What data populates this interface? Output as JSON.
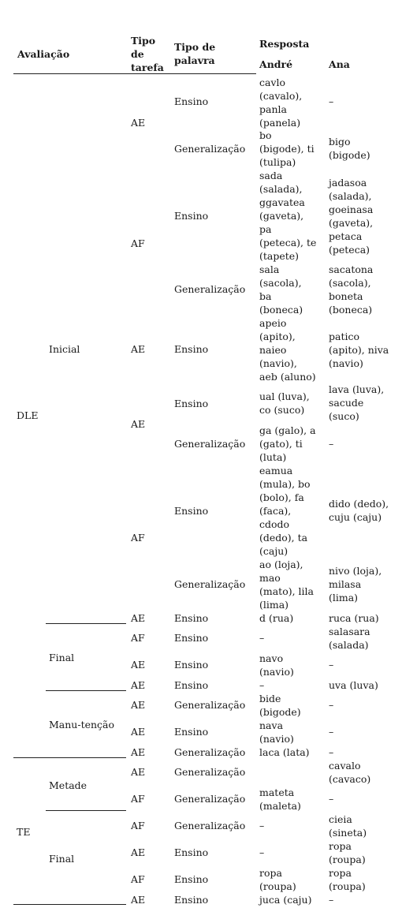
{
  "header": {
    "avaliacao": "Avaliação",
    "tipo_tarefa": [
      "Tipo",
      "de",
      "tarefa"
    ],
    "tipo_palavra": [
      "Tipo de",
      "palavra"
    ],
    "resposta": "Resposta",
    "andre": "André",
    "ana": "Ana"
  },
  "groups": {
    "dle": "DLE",
    "te": "TE",
    "inicial": "Inicial",
    "final_dle": "Final",
    "manutencao": "Manu-tenção",
    "metade": "Metade",
    "final_te": "Final"
  },
  "rows": [
    {
      "tarefa": "",
      "palavra": "Ensino",
      "andre": [
        "cavlo",
        "(cavalo),",
        "panla",
        "(panela)"
      ],
      "ana": [
        "–"
      ]
    },
    {
      "tarefa": "AE",
      "palavra": "",
      "andre": [],
      "ana": []
    },
    {
      "tarefa": "",
      "palavra": "Generalização",
      "andre": [
        "bo",
        "(bigode), ti",
        "(tulipa)"
      ],
      "ana": [
        "bigo",
        "(bigode)"
      ]
    },
    {
      "tarefa": "",
      "palavra": "Ensino",
      "andre": [
        "sada",
        "(salada),",
        "ggavatea",
        "(gaveta),",
        "pa",
        "(peteca), te",
        "(tapete)"
      ],
      "ana": [
        "jadasoa",
        "(salada),",
        "goeinasa",
        "(gaveta),",
        "petaca",
        "(peteca)"
      ]
    },
    {
      "tarefa": "AF",
      "palavra": "",
      "andre": [],
      "ana": []
    },
    {
      "tarefa": "",
      "palavra": "Generalização",
      "andre": [
        "sala",
        "(sacola),",
        "ba",
        "(boneca)"
      ],
      "ana": [
        "sacatona",
        "(sacola),",
        "boneta",
        "(boneca)"
      ]
    },
    {
      "tarefa": "AE",
      "palavra": "Ensino",
      "andre": [
        "apeio",
        "(apito),",
        "naieo",
        "(navio),",
        "aeb (aluno)"
      ],
      "ana": [
        "patico",
        "(apito), niva",
        "(navio)"
      ]
    },
    {
      "tarefa": "",
      "palavra": "Ensino",
      "andre": [
        "ual (luva),",
        "co (suco)"
      ],
      "ana": [
        "lava (luva),",
        "sacude",
        "(suco)"
      ]
    },
    {
      "tarefa": "AE",
      "palavra": "",
      "andre": [],
      "ana": []
    },
    {
      "tarefa": "",
      "palavra": "Generalização",
      "andre": [
        "ga (galo), a",
        "(gato), ti",
        "(luta)"
      ],
      "ana": [
        "–"
      ]
    },
    {
      "tarefa": "",
      "palavra": "Ensino",
      "andre": [
        "eamua",
        "(mula), bo",
        "(bolo), fa",
        "(faca),",
        "cdodo",
        "(dedo), ta",
        "(caju)"
      ],
      "ana": [
        "dido (dedo),",
        "cuju (caju)"
      ]
    },
    {
      "tarefa": "AF",
      "palavra": "",
      "andre": [],
      "ana": []
    },
    {
      "tarefa": "",
      "palavra": "Generalização",
      "andre": [
        "ao (loja),",
        "mao",
        "(mato), lila",
        "(lima)"
      ],
      "ana": [
        "nivo (loja),",
        "milasa",
        "(lima)"
      ]
    },
    {
      "tarefa": "AE",
      "palavra": "Ensino",
      "andre": [
        "d (rua)"
      ],
      "ana": [
        "ruca (rua)"
      ]
    },
    {
      "tarefa": "AF",
      "palavra": "Ensino",
      "andre": [
        "–"
      ],
      "ana": [
        "salasara",
        "(salada)"
      ]
    },
    {
      "tarefa": "AE",
      "palavra": "Ensino",
      "andre": [
        "navo",
        "(navio)"
      ],
      "ana": [
        "–"
      ]
    },
    {
      "tarefa": "AE",
      "palavra": "Ensino",
      "andre": [
        "–"
      ],
      "ana": [
        "uva (luva)"
      ]
    },
    {
      "tarefa": "AE",
      "palavra": "Generalização",
      "andre": [
        "bide",
        "(bigode)"
      ],
      "ana": [
        "–"
      ]
    },
    {
      "tarefa": "AE",
      "palavra": "Ensino",
      "andre": [
        "nava",
        "(navio)"
      ],
      "ana": [
        "–"
      ]
    },
    {
      "tarefa": "AE",
      "palavra": "Generalização",
      "andre": [
        "laca (lata)"
      ],
      "ana": [
        "–"
      ]
    },
    {
      "tarefa": "AE",
      "palavra": "Generalização",
      "andre": [],
      "ana": [
        "cavalo",
        "(cavaco)"
      ]
    },
    {
      "tarefa": "AF",
      "palavra": "Generalização",
      "andre": [
        "mateta",
        "(maleta)"
      ],
      "ana": [
        "–"
      ]
    },
    {
      "tarefa": "AF",
      "palavra": "Generalização",
      "andre": [
        "–"
      ],
      "ana": [
        "cieia",
        "(sineta)"
      ]
    },
    {
      "tarefa": "AE",
      "palavra": "Ensino",
      "andre": [
        "–"
      ],
      "ana": [
        "ropa",
        "(roupa)"
      ]
    },
    {
      "tarefa": "AF",
      "palavra": "Ensino",
      "andre": [
        "ropa",
        "(roupa)"
      ],
      "ana": [
        "ropa",
        "(roupa)"
      ]
    },
    {
      "tarefa": "AE",
      "palavra": "Ensino",
      "andre": [
        "juca (caju)"
      ],
      "ana": [
        "–"
      ]
    }
  ]
}
